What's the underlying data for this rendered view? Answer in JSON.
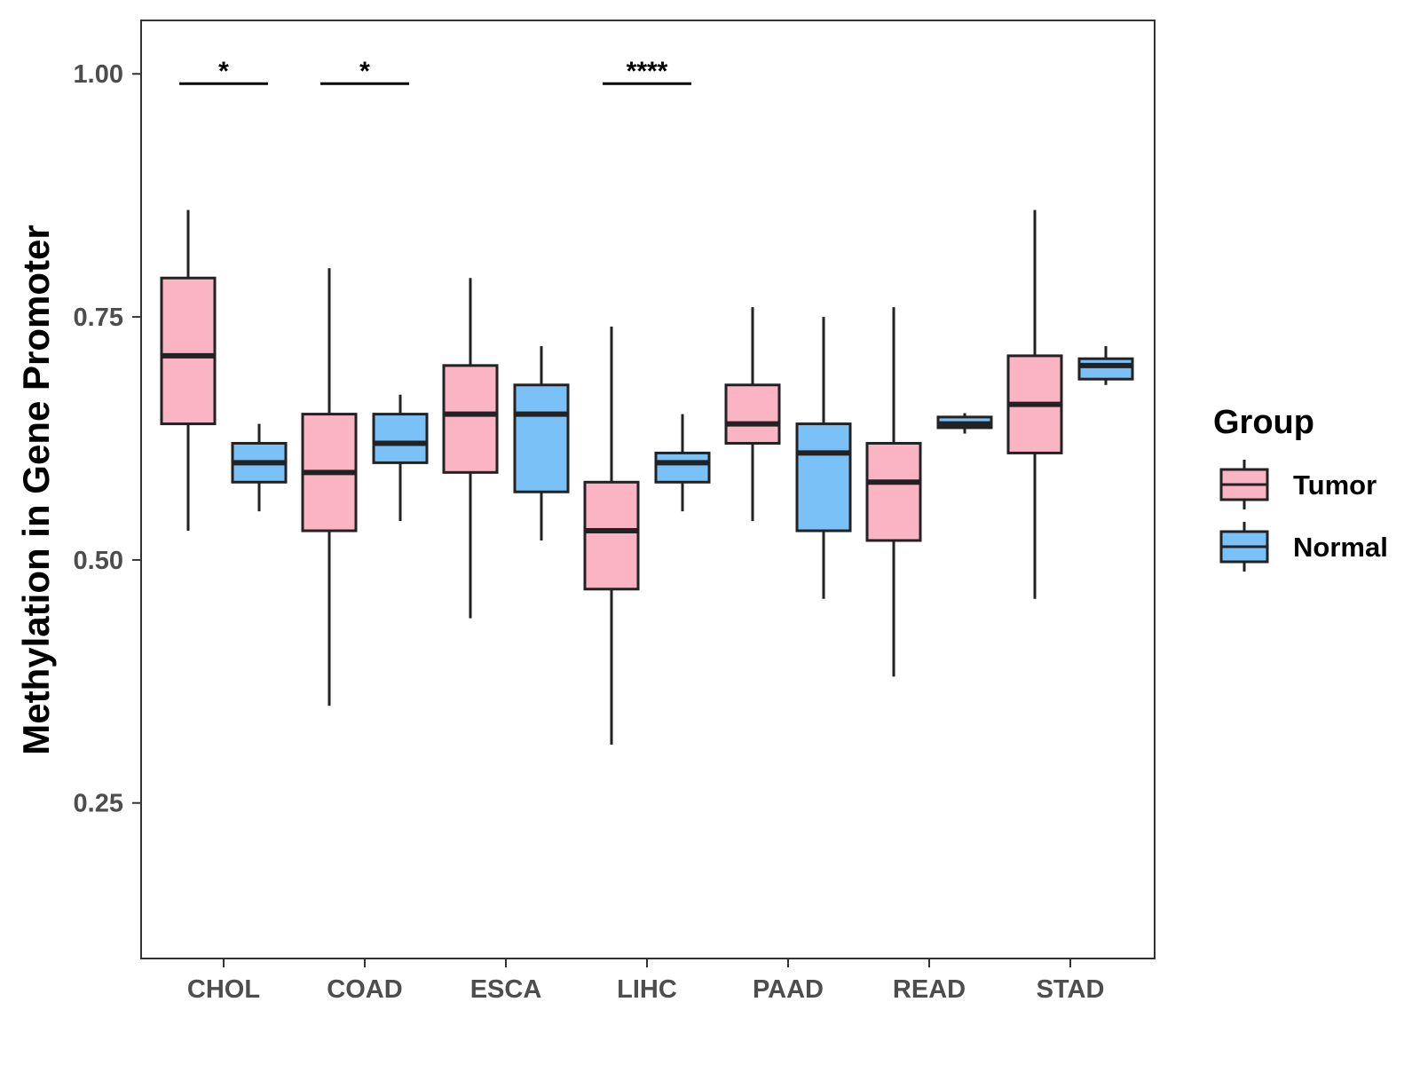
{
  "chart_data": {
    "type": "boxplot",
    "title": "",
    "xlabel": "",
    "ylabel": "Methylation in Gene Promoter",
    "ylim": [
      0.09,
      1.055
    ],
    "yticks": [
      {
        "value": 0.25,
        "label": "0.25"
      },
      {
        "value": 0.5,
        "label": "0.50"
      },
      {
        "value": 0.75,
        "label": "0.75"
      },
      {
        "value": 1.0,
        "label": "1.00"
      }
    ],
    "grid": false,
    "legend_position": "right",
    "legend": {
      "title": "Group",
      "entries": [
        {
          "name": "Tumor",
          "color": "#FBB4C4"
        },
        {
          "name": "Normal",
          "color": "#7AC1F8"
        }
      ]
    },
    "categories": [
      "CHOL",
      "COAD",
      "ESCA",
      "LIHC",
      "PAAD",
      "READ",
      "STAD"
    ],
    "series": [
      {
        "name": "Tumor",
        "color": "#FBB4C4",
        "boxes": [
          {
            "min": 0.53,
            "q1": 0.64,
            "median": 0.71,
            "q3": 0.79,
            "max": 0.86
          },
          {
            "min": 0.35,
            "q1": 0.53,
            "median": 0.59,
            "q3": 0.65,
            "max": 0.8
          },
          {
            "min": 0.44,
            "q1": 0.59,
            "median": 0.65,
            "q3": 0.7,
            "max": 0.79
          },
          {
            "min": 0.31,
            "q1": 0.47,
            "median": 0.53,
            "q3": 0.58,
            "max": 0.74
          },
          {
            "min": 0.54,
            "q1": 0.62,
            "median": 0.64,
            "q3": 0.68,
            "max": 0.76
          },
          {
            "min": 0.38,
            "q1": 0.52,
            "median": 0.58,
            "q3": 0.62,
            "max": 0.76
          },
          {
            "min": 0.46,
            "q1": 0.61,
            "median": 0.66,
            "q3": 0.71,
            "max": 0.86
          }
        ]
      },
      {
        "name": "Normal",
        "color": "#7AC1F8",
        "boxes": [
          {
            "min": 0.55,
            "q1": 0.58,
            "median": 0.6,
            "q3": 0.62,
            "max": 0.64
          },
          {
            "min": 0.54,
            "q1": 0.6,
            "median": 0.62,
            "q3": 0.65,
            "max": 0.67
          },
          {
            "min": 0.52,
            "q1": 0.57,
            "median": 0.65,
            "q3": 0.68,
            "max": 0.72
          },
          {
            "min": 0.55,
            "q1": 0.58,
            "median": 0.6,
            "q3": 0.61,
            "max": 0.65
          },
          {
            "min": 0.46,
            "q1": 0.53,
            "median": 0.61,
            "q3": 0.64,
            "max": 0.75
          },
          {
            "min": 0.63,
            "q1": 0.636,
            "median": 0.64,
            "q3": 0.647,
            "max": 0.651
          },
          {
            "min": 0.68,
            "q1": 0.686,
            "median": 0.7,
            "q3": 0.707,
            "max": 0.72
          }
        ]
      }
    ],
    "significance": [
      {
        "category": "CHOL",
        "label": "*",
        "y": 0.99
      },
      {
        "category": "COAD",
        "label": "*",
        "y": 0.99
      },
      {
        "category": "LIHC",
        "label": "****",
        "y": 0.99
      }
    ],
    "style": {
      "outline": "#222222",
      "axis_color": "#333333",
      "tick_text_color": "#4d4d4d"
    }
  }
}
